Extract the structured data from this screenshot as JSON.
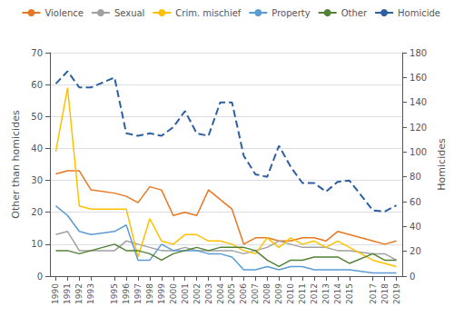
{
  "chart_data": {
    "type": "line",
    "x": [
      1990,
      1991,
      1992,
      1993,
      1995,
      1996,
      1997,
      1998,
      1999,
      2000,
      2001,
      2002,
      2003,
      2004,
      2005,
      2006,
      2007,
      2008,
      2009,
      2010,
      2011,
      2012,
      2013,
      2014,
      2015,
      2017,
      2018,
      2019
    ],
    "xlim": [
      1989.5,
      2019.5
    ],
    "xticks": [
      1990,
      1991,
      1992,
      1993,
      1995,
      1996,
      1997,
      1998,
      1999,
      2000,
      2001,
      2002,
      2003,
      2004,
      2005,
      2006,
      2007,
      2008,
      2009,
      2010,
      2011,
      2012,
      2013,
      2014,
      2015,
      2017,
      2018,
      2019
    ],
    "ylabel": "Other than homicides",
    "y2label": "Homicides",
    "ylim": [
      0,
      70
    ],
    "yticks": [
      0,
      10,
      20,
      30,
      40,
      50,
      60,
      70
    ],
    "y2lim": [
      0,
      180
    ],
    "y2ticks": [
      0,
      20,
      40,
      60,
      80,
      100,
      120,
      140,
      160,
      180
    ],
    "grid": true,
    "legend": "upper right",
    "series": [
      {
        "name": "Violence",
        "color": "#E87722",
        "values": [
          32,
          33,
          33,
          27,
          26,
          25,
          23,
          28,
          27,
          19,
          20,
          19,
          27,
          24,
          21,
          10,
          12,
          12,
          11,
          11,
          12,
          12,
          11,
          14,
          13,
          11,
          10,
          11
        ]
      },
      {
        "name": "Sexual",
        "color": "#A0A0A0",
        "values": [
          13,
          14,
          8,
          8,
          8,
          11,
          10,
          9,
          8,
          8,
          9,
          8,
          8,
          8,
          8,
          7,
          8,
          9,
          11,
          10,
          9,
          9,
          9,
          8,
          8,
          7,
          7,
          5
        ]
      },
      {
        "name": "Crim. mischief",
        "color": "#FFC000",
        "values": [
          39,
          59,
          22,
          21,
          21,
          21,
          6,
          18,
          11,
          10,
          13,
          13,
          11,
          11,
          10,
          8,
          7,
          12,
          9,
          12,
          10,
          11,
          9,
          11,
          9,
          5,
          4,
          3
        ]
      },
      {
        "name": "Property",
        "color": "#5B9BD5",
        "values": [
          22,
          19,
          14,
          13,
          14,
          16,
          5,
          5,
          10,
          8,
          8,
          8,
          7,
          7,
          6,
          2,
          2,
          3,
          2,
          3,
          3,
          2,
          2,
          2,
          2,
          1,
          1,
          1
        ]
      },
      {
        "name": "Other",
        "color": "#538135",
        "values": [
          8,
          8,
          7,
          8,
          10,
          8,
          8,
          7,
          5,
          7,
          8,
          9,
          8,
          9,
          9,
          9,
          8,
          5,
          3,
          5,
          5,
          6,
          6,
          6,
          4,
          7,
          5,
          5
        ]
      },
      {
        "name": "Homicide",
        "color": "#2E5FA3",
        "axis": "y2",
        "line_style": "dashed",
        "values": [
          155,
          165,
          152,
          152,
          160,
          115,
          113,
          115,
          113,
          120,
          133,
          115,
          113,
          140,
          140,
          97,
          82,
          80,
          105,
          88,
          75,
          75,
          68,
          76,
          77,
          53,
          52,
          57
        ]
      }
    ]
  }
}
